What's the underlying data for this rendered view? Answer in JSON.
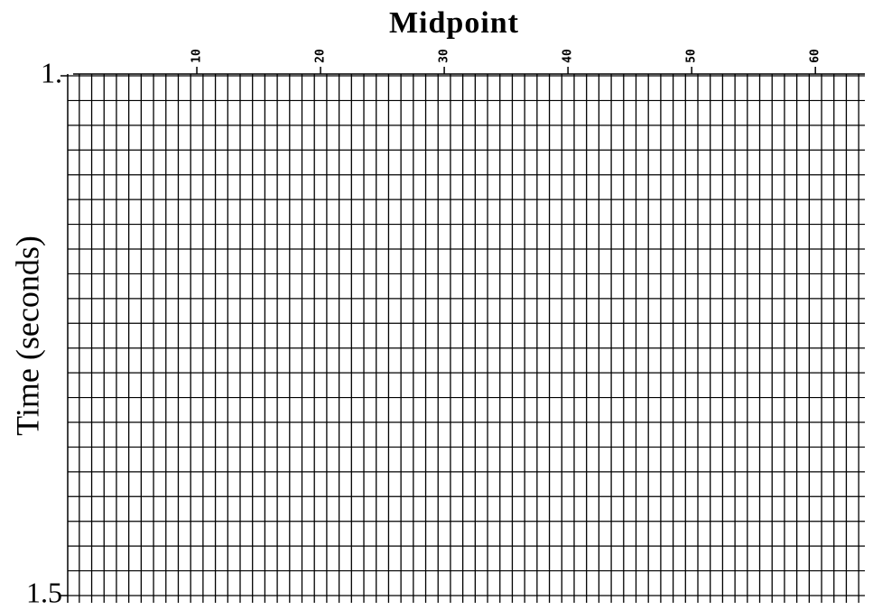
{
  "chart_data": {
    "type": "wiggle",
    "title": "Midpoint",
    "y_label": "Time (seconds)",
    "xlim": [
      0,
      64
    ],
    "xticks": [
      10,
      20,
      30,
      40,
      50,
      60
    ],
    "ylim": [
      1,
      1.5
    ],
    "yticks": [
      {
        "value": 1,
        "label": "1."
      },
      {
        "value": 1.5,
        "label": "1.5"
      }
    ]
  }
}
